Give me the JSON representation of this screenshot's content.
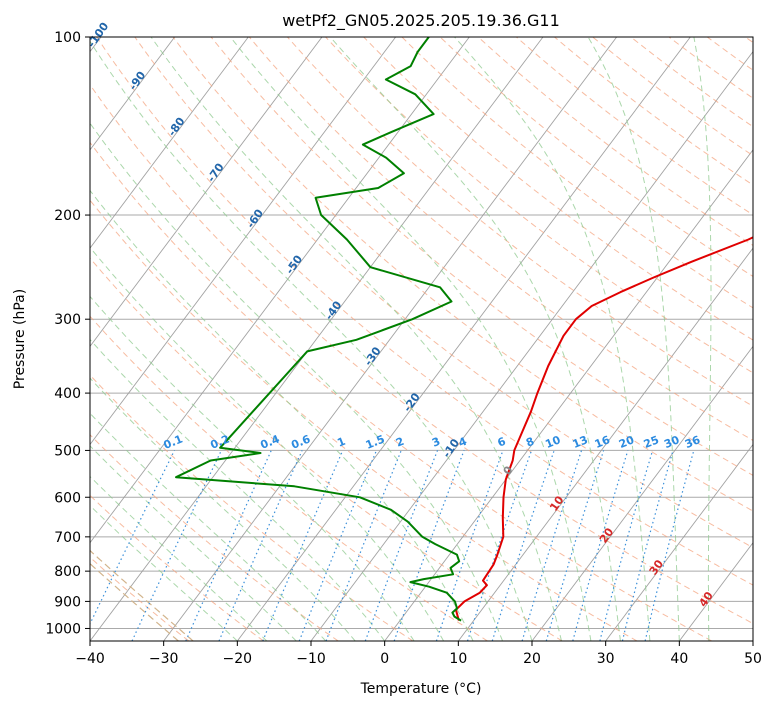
{
  "chart_data": {
    "type": "line",
    "title": "wetPf2_GN05.2025.205.19.36.G11",
    "xlabel": "Temperature (°C)",
    "ylabel": "Pressure (hPa)",
    "xlim": [
      -40,
      50
    ],
    "ylim": [
      1050,
      100
    ],
    "y_scale": "log",
    "x_ticks": [
      -40,
      -30,
      -20,
      -10,
      0,
      10,
      20,
      30,
      40,
      50
    ],
    "y_ticks": [
      100,
      200,
      300,
      400,
      500,
      600,
      700,
      800,
      900,
      1000
    ],
    "grid": true,
    "colors": {
      "temperature": "#e00000",
      "dewpoint": "#008000",
      "isotherms": "#999999",
      "dry_adiabats": "#f4a582",
      "moist_adiabats": "#8fc98f",
      "mixing_ratio": "#3a8fd9",
      "special_adiabat": "#d2b48c",
      "isobars": "#aaaaaa"
    },
    "series": [
      {
        "name": "",
        "values": [
          {
            "p": 970,
            "t": 8.0
          },
          {
            "p": 930,
            "t": 6.5
          },
          {
            "p": 900,
            "t": 6.8
          },
          {
            "p": 870,
            "t": 8.0
          },
          {
            "p": 845,
            "t": 8.2
          },
          {
            "p": 830,
            "t": 7.2
          },
          {
            "p": 780,
            "t": 7.0
          },
          {
            "p": 750,
            "t": 6.5
          },
          {
            "p": 700,
            "t": 5.5
          },
          {
            "p": 650,
            "t": 3.5
          },
          {
            "p": 600,
            "t": 1.5
          },
          {
            "p": 560,
            "t": 0.0
          },
          {
            "p": 520,
            "t": -1.0
          },
          {
            "p": 500,
            "t": -1.8
          },
          {
            "p": 470,
            "t": -2.5
          },
          {
            "p": 430,
            "t": -3.5
          },
          {
            "p": 400,
            "t": -4.5
          },
          {
            "p": 360,
            "t": -5.8
          },
          {
            "p": 320,
            "t": -6.8
          },
          {
            "p": 300,
            "t": -6.8
          },
          {
            "p": 285,
            "t": -6.0
          },
          {
            "p": 270,
            "t": -3.5
          },
          {
            "p": 255,
            "t": -0.5
          },
          {
            "p": 240,
            "t": 3.0
          },
          {
            "p": 220,
            "t": 8.5
          },
          {
            "p": 200,
            "t": 13.0
          },
          {
            "p": 180,
            "t": 16.0
          },
          {
            "p": 160,
            "t": 20.0
          },
          {
            "p": 150,
            "t": 22.5
          },
          {
            "p": 140,
            "t": 25.5
          },
          {
            "p": 130,
            "t": 28.5
          },
          {
            "p": 120,
            "t": 30.5
          },
          {
            "p": 110,
            "t": 31.5
          },
          {
            "p": 100,
            "t": 33.0
          }
        ]
      },
      {
        "name": "",
        "values": [
          {
            "p": 970,
            "t": 8.3
          },
          {
            "p": 955,
            "t": 7.0
          },
          {
            "p": 940,
            "t": 6.3
          },
          {
            "p": 925,
            "t": 6.5
          },
          {
            "p": 900,
            "t": 5.5
          },
          {
            "p": 870,
            "t": 3.5
          },
          {
            "p": 850,
            "t": 0.5
          },
          {
            "p": 835,
            "t": -2.5
          },
          {
            "p": 825,
            "t": -1.0
          },
          {
            "p": 810,
            "t": 2.5
          },
          {
            "p": 790,
            "t": 1.5
          },
          {
            "p": 770,
            "t": 2.0
          },
          {
            "p": 750,
            "t": 1.0
          },
          {
            "p": 720,
            "t": -3.0
          },
          {
            "p": 700,
            "t": -5.5
          },
          {
            "p": 660,
            "t": -9.0
          },
          {
            "p": 630,
            "t": -12.5
          },
          {
            "p": 600,
            "t": -18.0
          },
          {
            "p": 575,
            "t": -28.0
          },
          {
            "p": 555,
            "t": -45.0
          },
          {
            "p": 520,
            "t": -42.0
          },
          {
            "p": 505,
            "t": -36.0
          },
          {
            "p": 495,
            "t": -42.0
          },
          {
            "p": 340,
            "t": -40.0
          },
          {
            "p": 325,
            "t": -34.5
          },
          {
            "p": 300,
            "t": -29.0
          },
          {
            "p": 280,
            "t": -25.5
          },
          {
            "p": 265,
            "t": -28.5
          },
          {
            "p": 245,
            "t": -40.0
          },
          {
            "p": 220,
            "t": -46.0
          },
          {
            "p": 200,
            "t": -52.0
          },
          {
            "p": 187,
            "t": -54.5
          },
          {
            "p": 180,
            "t": -47.0
          },
          {
            "p": 170,
            "t": -45.0
          },
          {
            "p": 160,
            "t": -49.0
          },
          {
            "p": 152,
            "t": -53.5
          },
          {
            "p": 145,
            "t": -51.0
          },
          {
            "p": 135,
            "t": -47.0
          },
          {
            "p": 125,
            "t": -51.5
          },
          {
            "p": 118,
            "t": -57.0
          },
          {
            "p": 112,
            "t": -55.0
          },
          {
            "p": 106,
            "t": -55.5
          },
          {
            "p": 100,
            "t": -55.5
          }
        ]
      }
    ],
    "isotherm_labels": [
      -100,
      -90,
      -80,
      -70,
      -60,
      -50,
      -40,
      -30,
      -20,
      -10,
      0,
      10,
      20,
      30,
      40
    ],
    "mixing_ratio_labels": [
      "0.1",
      "0.2",
      "0.4",
      "0.6",
      "1",
      "1.5",
      "2",
      "3",
      "4",
      "6",
      "8",
      "10",
      "13",
      "16",
      "20",
      "25",
      "30",
      "36"
    ]
  }
}
